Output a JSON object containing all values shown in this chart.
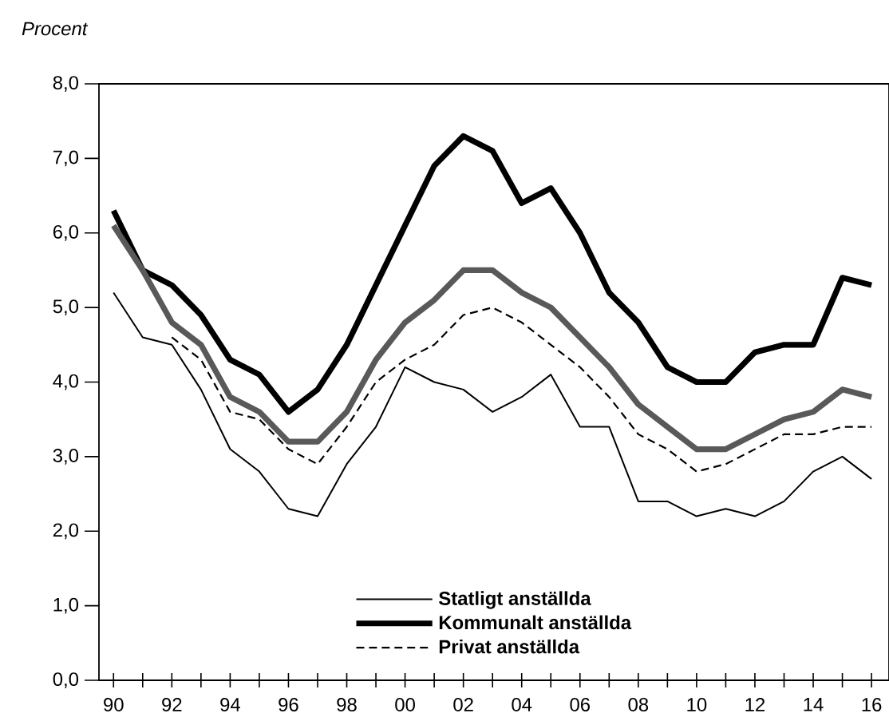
{
  "chart_data": {
    "type": "line",
    "ylabel": "Procent",
    "x": [
      1990,
      1991,
      1992,
      1993,
      1994,
      1995,
      1996,
      1997,
      1998,
      1999,
      2000,
      2001,
      2002,
      2003,
      2004,
      2005,
      2006,
      2007,
      2008,
      2009,
      2010,
      2011,
      2012,
      2013,
      2014,
      2015,
      2016
    ],
    "series": [
      {
        "name": "Statligt anställda",
        "color": "#000000",
        "line_style": "solid",
        "values": [
          5.2,
          4.6,
          4.5,
          3.9,
          3.1,
          2.8,
          2.3,
          2.2,
          2.9,
          3.4,
          4.2,
          4.0,
          3.9,
          3.6,
          3.8,
          4.1,
          3.4,
          3.4,
          2.4,
          2.4,
          2.2,
          2.3,
          2.2,
          2.4,
          2.8,
          3.0,
          2.7
        ]
      },
      {
        "name": "Kommunalt anställda",
        "color": "#000000",
        "line_style": "solid",
        "values": [
          6.3,
          5.5,
          5.3,
          4.9,
          4.3,
          4.1,
          3.6,
          3.9,
          4.5,
          5.3,
          6.1,
          6.9,
          7.3,
          7.1,
          6.4,
          6.6,
          6.0,
          5.2,
          4.8,
          4.2,
          4.0,
          4.0,
          4.4,
          4.5,
          4.5,
          5.4,
          5.3
        ]
      },
      {
        "name": "Privat anställda",
        "color": "#000000",
        "line_style": "dashed",
        "values": [
          null,
          null,
          4.6,
          4.3,
          3.6,
          3.5,
          3.1,
          2.9,
          3.4,
          4.0,
          4.3,
          4.5,
          4.9,
          5.0,
          4.8,
          4.5,
          4.2,
          3.8,
          3.3,
          3.1,
          2.8,
          2.9,
          3.1,
          3.3,
          3.3,
          3.4,
          3.4
        ]
      },
      {
        "color": "#595959",
        "line_style": "solid",
        "values": [
          6.1,
          5.5,
          4.8,
          4.5,
          3.8,
          3.6,
          3.2,
          3.2,
          3.6,
          4.3,
          4.8,
          5.1,
          5.5,
          5.5,
          5.2,
          5.0,
          4.6,
          4.2,
          3.7,
          3.4,
          3.1,
          3.1,
          3.3,
          3.5,
          3.6,
          3.9,
          3.8
        ]
      }
    ],
    "xlim": [
      1989.5,
      2016.6
    ],
    "xticks": [
      {
        "value": 1990,
        "label": "90"
      },
      {
        "value": 1991,
        "label": null
      },
      {
        "value": 1992,
        "label": "92"
      },
      {
        "value": 1993,
        "label": null
      },
      {
        "value": 1994,
        "label": "94"
      },
      {
        "value": 1995,
        "label": null
      },
      {
        "value": 1996,
        "label": "96"
      },
      {
        "value": 1997,
        "label": null
      },
      {
        "value": 1998,
        "label": "98"
      },
      {
        "value": 1999,
        "label": null
      },
      {
        "value": 2000,
        "label": "00"
      },
      {
        "value": 2001,
        "label": null
      },
      {
        "value": 2002,
        "label": "02"
      },
      {
        "value": 2003,
        "label": null
      },
      {
        "value": 2004,
        "label": "04"
      },
      {
        "value": 2005,
        "label": null
      },
      {
        "value": 2006,
        "label": "06"
      },
      {
        "value": 2007,
        "label": null
      },
      {
        "value": 2008,
        "label": "08"
      },
      {
        "value": 2009,
        "label": null
      },
      {
        "value": 2010,
        "label": "10"
      },
      {
        "value": 2011,
        "label": null
      },
      {
        "value": 2012,
        "label": "12"
      },
      {
        "value": 2013,
        "label": null
      },
      {
        "value": 2014,
        "label": "14"
      },
      {
        "value": 2015,
        "label": null
      },
      {
        "value": 2016,
        "label": "16"
      }
    ],
    "ylim": [
      0,
      8
    ],
    "yticks": [
      {
        "value": 0,
        "label": "0,0"
      },
      {
        "value": 1,
        "label": "1,0"
      },
      {
        "value": 2,
        "label": "2,0"
      },
      {
        "value": 3,
        "label": "3,0"
      },
      {
        "value": 4,
        "label": "4,0"
      },
      {
        "value": 5,
        "label": "5,0"
      },
      {
        "value": 6,
        "label": "6,0"
      },
      {
        "value": 7,
        "label": "7,0"
      },
      {
        "value": 8,
        "label": "8,0"
      }
    ],
    "legend": "bottom"
  }
}
